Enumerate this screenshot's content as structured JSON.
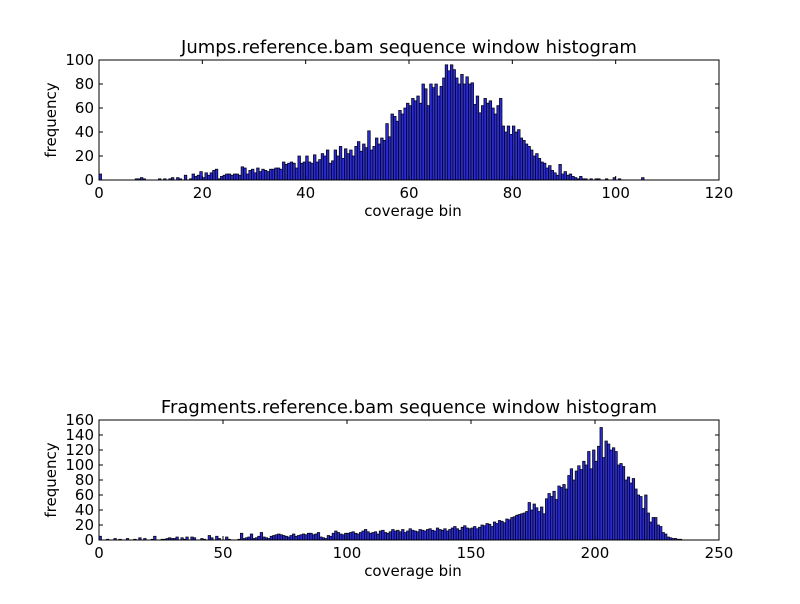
{
  "chart_data": [
    {
      "type": "bar",
      "title": "Jumps.reference.bam sequence window histogram",
      "xlabel": "coverage bin",
      "ylabel": "frequency",
      "xlim": [
        0,
        120
      ],
      "ylim": [
        0,
        100
      ],
      "xticks": [
        "0",
        "20",
        "40",
        "60",
        "80",
        "100",
        "120"
      ],
      "yticks": [
        "0",
        "20",
        "40",
        "60",
        "80",
        "100"
      ],
      "bin_width": 0.5,
      "values": [
        5,
        0,
        0,
        0,
        0,
        0,
        0,
        0,
        0,
        0,
        0,
        0,
        0,
        0,
        1,
        1,
        2,
        1,
        0,
        0,
        0,
        0,
        0,
        1,
        0,
        1,
        0,
        1,
        2,
        0,
        2,
        1,
        0,
        4,
        0,
        1,
        5,
        3,
        4,
        7,
        2,
        6,
        4,
        6,
        8,
        9,
        1,
        3,
        4,
        5,
        5,
        4,
        5,
        5,
        4,
        11,
        10,
        5,
        8,
        9,
        6,
        10,
        7,
        9,
        8,
        7,
        9,
        9,
        10,
        10,
        9,
        15,
        13,
        14,
        15,
        14,
        10,
        20,
        14,
        15,
        20,
        15,
        14,
        21,
        15,
        17,
        22,
        20,
        25,
        14,
        16,
        25,
        20,
        28,
        18,
        26,
        22,
        25,
        20,
        28,
        32,
        24,
        30,
        27,
        41,
        25,
        28,
        35,
        30,
        35,
        33,
        47,
        36,
        55,
        53,
        49,
        58,
        55,
        60,
        64,
        62,
        68,
        66,
        70,
        64,
        80,
        76,
        62,
        80,
        77,
        80,
        70,
        78,
        85,
        96,
        91,
        96,
        92,
        85,
        80,
        88,
        80,
        86,
        80,
        81,
        63,
        70,
        56,
        62,
        68,
        64,
        66,
        60,
        55,
        62,
        68,
        45,
        40,
        45,
        38,
        45,
        40,
        42,
        35,
        33,
        30,
        28,
        25,
        20,
        22,
        18,
        15,
        14,
        10,
        12,
        8,
        6,
        4,
        13,
        5,
        7,
        4,
        5,
        3,
        2,
        1,
        3,
        1,
        1,
        0,
        1,
        0,
        1,
        1,
        0,
        0,
        1,
        0,
        0,
        2,
        0,
        1,
        0,
        0,
        0,
        0,
        0,
        0,
        0,
        0,
        2,
        0
      ]
    },
    {
      "type": "bar",
      "title": "Fragments.reference.bam sequence window histogram",
      "xlabel": "coverage bin",
      "ylabel": "frequency",
      "xlim": [
        0,
        250
      ],
      "ylim": [
        0,
        160
      ],
      "xticks": [
        "0",
        "50",
        "100",
        "150",
        "200",
        "250"
      ],
      "yticks": [
        "0",
        "20",
        "40",
        "60",
        "80",
        "100",
        "120",
        "140",
        "160"
      ],
      "bin_width": 1,
      "values": [
        5,
        0,
        0,
        1,
        0,
        0,
        2,
        0,
        1,
        0,
        0,
        2,
        0,
        0,
        1,
        0,
        3,
        0,
        2,
        0,
        0,
        1,
        5,
        0,
        0,
        1,
        1,
        2,
        3,
        2,
        2,
        4,
        0,
        3,
        1,
        4,
        0,
        4,
        3,
        0,
        0,
        2,
        1,
        0,
        6,
        3,
        0,
        5,
        2,
        0,
        0,
        4,
        1,
        0,
        0,
        0,
        1,
        9,
        2,
        3,
        4,
        8,
        2,
        3,
        5,
        10,
        4,
        3,
        2,
        5,
        6,
        7,
        8,
        7,
        6,
        5,
        4,
        6,
        8,
        5,
        6,
        7,
        8,
        7,
        9,
        9,
        7,
        8,
        10,
        4,
        3,
        2,
        6,
        5,
        9,
        12,
        10,
        8,
        7,
        9,
        9,
        10,
        11,
        9,
        8,
        10,
        12,
        14,
        11,
        9,
        10,
        11,
        8,
        12,
        13,
        10,
        9,
        11,
        14,
        12,
        13,
        11,
        14,
        10,
        12,
        15,
        13,
        12,
        11,
        14,
        13,
        12,
        14,
        15,
        13,
        12,
        16,
        14,
        13,
        15,
        12,
        14,
        16,
        18,
        15,
        13,
        17,
        19,
        16,
        15,
        16,
        18,
        15,
        17,
        20,
        19,
        22,
        21,
        18,
        24,
        22,
        26,
        25,
        23,
        28,
        27,
        30,
        31,
        33,
        34,
        35,
        36,
        38,
        50,
        40,
        48,
        43,
        38,
        44,
        35,
        55,
        62,
        58,
        65,
        54,
        72,
        70,
        74,
        68,
        86,
        95,
        80,
        92,
        99,
        94,
        105,
        100,
        118,
        95,
        120,
        105,
        125,
        150,
        110,
        132,
        128,
        120,
        123,
        118,
        100,
        102,
        98,
        80,
        84,
        76,
        82,
        68,
        60,
        58,
        42,
        60,
        36,
        24,
        30,
        30,
        20,
        18,
        10,
        8,
        4,
        3,
        2,
        2,
        1,
        1,
        0,
        0,
        0,
        0,
        0
      ]
    }
  ]
}
